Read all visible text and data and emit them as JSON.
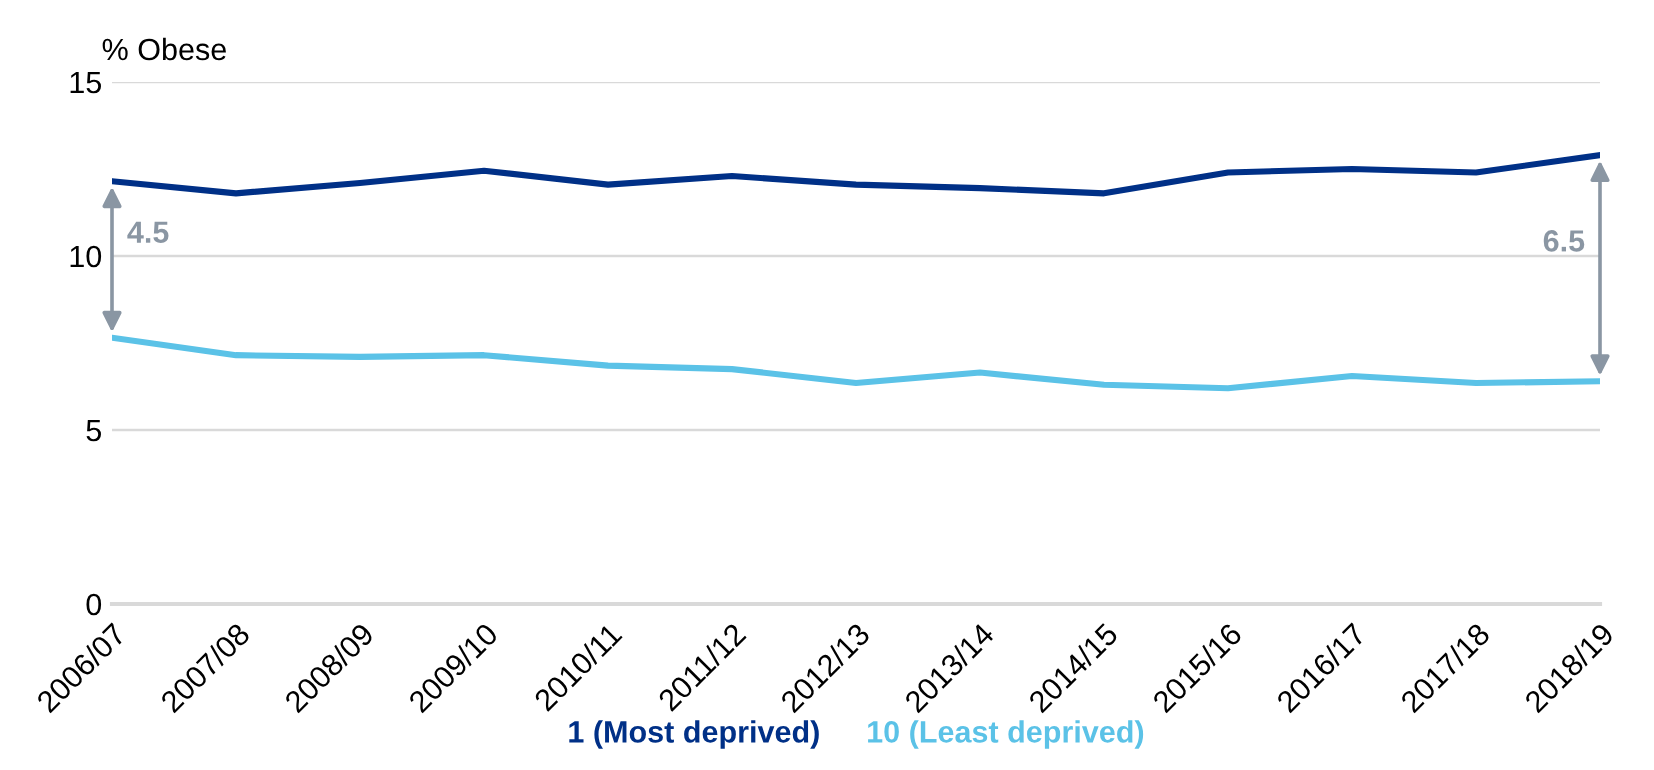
{
  "chart_data": {
    "type": "line",
    "ylabel": "% Obese",
    "categories": [
      "2006/07",
      "2007/08",
      "2008/09",
      "2009/10",
      "2010/11",
      "2011/12",
      "2012/13",
      "2013/14",
      "2014/15",
      "2015/16",
      "2016/17",
      "2017/18",
      "2018/19"
    ],
    "series": [
      {
        "name": "1 (Most deprived)",
        "color": "#003087",
        "values": [
          12.15,
          11.8,
          12.1,
          12.45,
          12.05,
          12.3,
          12.05,
          11.95,
          11.8,
          12.4,
          12.5,
          12.4,
          12.9
        ]
      },
      {
        "name": "10 (Least deprived)",
        "color": "#5bc2e7",
        "values": [
          7.65,
          7.15,
          7.1,
          7.15,
          6.85,
          6.75,
          6.35,
          6.65,
          6.3,
          6.2,
          6.55,
          6.35,
          6.4
        ]
      }
    ],
    "annotations": [
      "4.5",
      "6.5"
    ],
    "ylim": [
      0,
      15
    ],
    "yticks": [
      0,
      5,
      10,
      15
    ],
    "grid": "y",
    "legend": "bottom",
    "marker": "none",
    "line_style": "solid"
  }
}
